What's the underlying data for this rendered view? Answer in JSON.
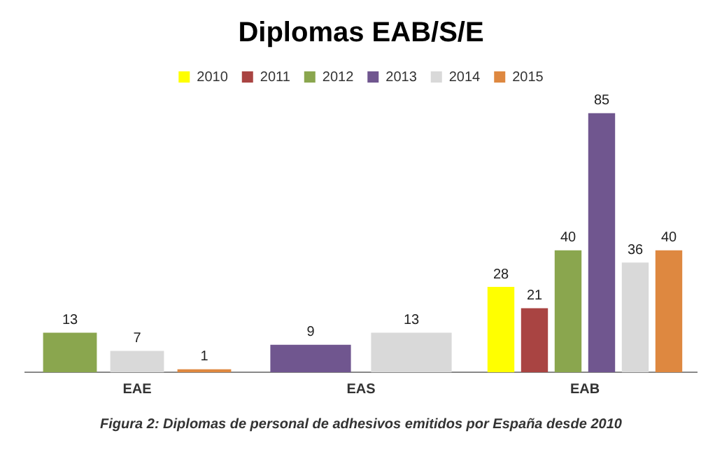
{
  "chart_data": {
    "type": "bar",
    "title": "Diplomas EAB/S/E",
    "categories": [
      "EAE",
      "EAS",
      "EAB"
    ],
    "series": [
      {
        "name": "2010",
        "color": "#ffff00",
        "values": [
          null,
          null,
          28
        ]
      },
      {
        "name": "2011",
        "color": "#a94442",
        "values": [
          null,
          null,
          21
        ]
      },
      {
        "name": "2012",
        "color": "#8aa64e",
        "values": [
          13,
          null,
          40
        ]
      },
      {
        "name": "2013",
        "color": "#70568f",
        "values": [
          null,
          9,
          85
        ]
      },
      {
        "name": "2014",
        "color": "#d9d9d9",
        "values": [
          7,
          13,
          36
        ]
      },
      {
        "name": "2015",
        "color": "#de8840",
        "values": [
          1,
          null,
          40
        ]
      }
    ],
    "data_labels": true,
    "grid": false,
    "legend": "top",
    "annotations": [
      "Figura 2: Diplomas de personal de adhesivos emitidos por España desde 2010"
    ]
  }
}
